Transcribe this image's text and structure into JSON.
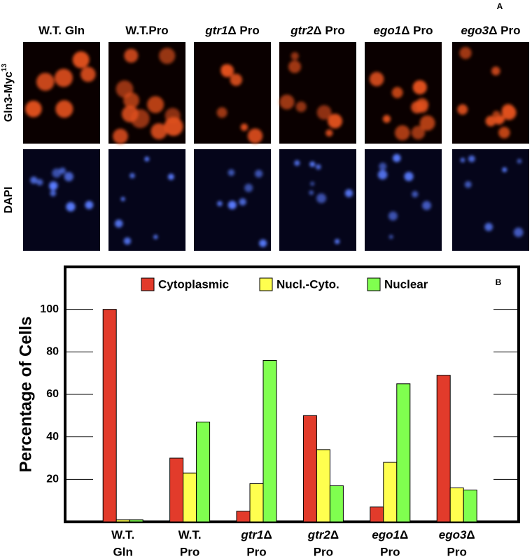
{
  "panel_a": {
    "label": "A",
    "columns": [
      {
        "strain": "W.T. Gln"
      },
      {
        "strain": "W.T.Pro"
      },
      {
        "gene": "gtr1",
        "suffix": "Δ Pro"
      },
      {
        "gene": "gtr2",
        "suffix": "Δ Pro"
      },
      {
        "gene": "ego1",
        "suffix": "Δ Pro"
      },
      {
        "gene": "ego3",
        "suffix": "Δ Pro"
      }
    ],
    "rows": [
      {
        "text": "Gln3-Myc",
        "sup": "13"
      },
      {
        "text": "DAPI"
      }
    ]
  },
  "chart_data": {
    "type": "bar",
    "panel_label": "B",
    "y_label": "Percentage of Cells",
    "categories": [
      {
        "strain": "W.T.",
        "medium": "Gln"
      },
      {
        "strain": "W.T.",
        "medium": "Pro"
      },
      {
        "gene": "gtr1",
        "suffix": "Δ",
        "medium": "Pro"
      },
      {
        "gene": "gtr2",
        "suffix": "Δ",
        "medium": "Pro"
      },
      {
        "gene": "ego1",
        "suffix": "Δ",
        "medium": "Pro"
      },
      {
        "gene": "ego3",
        "suffix": "Δ",
        "medium": "Pro"
      }
    ],
    "series": [
      {
        "name": "Cytoplasmic",
        "color": "#e23b2b",
        "values": [
          100,
          30,
          5,
          50,
          7,
          69
        ]
      },
      {
        "name": "Nucl.-Cyto.",
        "color": "#ffff4f",
        "values": [
          1,
          23,
          18,
          34,
          28,
          16
        ]
      },
      {
        "name": "Nuclear",
        "color": "#80ff4f",
        "values": [
          1,
          47,
          76,
          17,
          65,
          15
        ]
      }
    ],
    "ylim": [
      0,
      120
    ],
    "yticks": [
      20,
      40,
      60,
      80,
      100
    ],
    "legend": "top"
  }
}
